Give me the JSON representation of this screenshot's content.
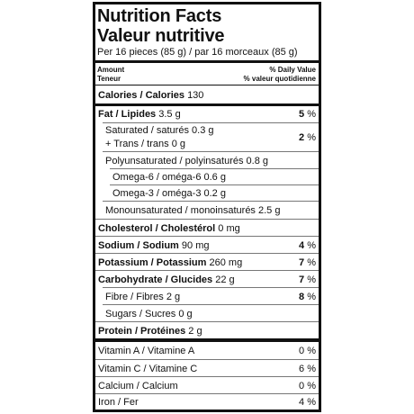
{
  "header": {
    "title": "Nutrition Facts",
    "title_fr": "Valeur nutritive",
    "serving": "Per 16 pieces (85 g) / par 16 morceaux (85 g)"
  },
  "columns": {
    "amount": "Amount",
    "amount_fr": "Teneur",
    "dv": "% Daily Value",
    "dv_fr": "% valeur quotidienne"
  },
  "rows": [
    {
      "label": "Calories / Calories",
      "amount": "130"
    },
    {
      "label": "Fat / Lipides",
      "amount": "3.5 g",
      "dv": "5",
      "unit": "%"
    },
    {
      "label": "Saturated / saturés",
      "amount": "0.3 g",
      "label2": "+ Trans / trans",
      "amount2": "0 g",
      "dv": "2",
      "unit": "%"
    },
    {
      "label": "Polyunsaturated / polyinsaturés",
      "amount": "0.8 g"
    },
    {
      "label": "Omega-6 / oméga-6",
      "amount": "0.6 g"
    },
    {
      "label": "Omega-3 / oméga-3",
      "amount": "0.2 g"
    },
    {
      "label": "Monounsaturated / monoinsaturés",
      "amount": "2.5 g"
    },
    {
      "label": "Cholesterol / Cholestérol",
      "amount": "0 mg"
    },
    {
      "label": "Sodium / Sodium",
      "amount": "90 mg",
      "dv": "4",
      "unit": "%"
    },
    {
      "label": "Potassium / Potassium",
      "amount": "260 mg",
      "dv": "7",
      "unit": "%"
    },
    {
      "label": "Carbohydrate / Glucides",
      "amount": "22 g",
      "dv": "7",
      "unit": "%"
    },
    {
      "label": "Fibre / Fibres",
      "amount": "2 g",
      "dv": "8",
      "unit": "%"
    },
    {
      "label": "Sugars / Sucres",
      "amount": "0 g"
    },
    {
      "label": "Protein / Protéines",
      "amount": "2 g"
    }
  ],
  "vitamins": [
    {
      "label": "Vitamin A / Vitamine A",
      "dv": "0",
      "unit": "%"
    },
    {
      "label": "Vitamin C / Vitamine C",
      "dv": "6",
      "unit": "%"
    },
    {
      "label": "Calcium / Calcium",
      "dv": "0",
      "unit": "%"
    },
    {
      "label": "Iron / Fer",
      "dv": "4",
      "unit": "%"
    }
  ]
}
